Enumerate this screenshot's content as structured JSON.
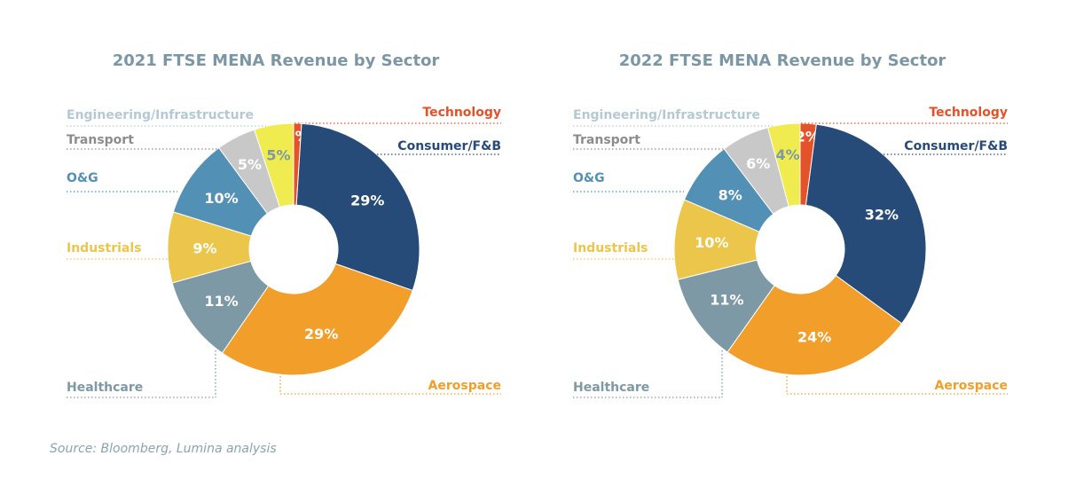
{
  "source": "Source: Bloomberg, Lumina analysis",
  "colors": {
    "Technology": "#e4522a",
    "Consumer/F&B": "#274b78",
    "Aerospace": "#f29e2a",
    "Healthcare": "#7d99a6",
    "Industrials": "#ecc64a",
    "O&G": "#5390b6",
    "Transport": "#c8c8c8",
    "Engineering/Infrastructure": "#f0eb4e"
  },
  "label_colors": {
    "Technology": "#e4522a",
    "Consumer/F&B": "#274b78",
    "Aerospace": "#f29e2a",
    "Healthcare": "#7d99a6",
    "Industrials": "#ecc64a",
    "O&G": "#5390b6",
    "Transport": "#8c8c8c",
    "Engineering/Infrastructure": "#b5c9d4"
  },
  "chart_data": [
    {
      "type": "pie",
      "donut": true,
      "title": "2021 FTSE MENA Revenue by Sector",
      "categories": [
        "Technology",
        "Consumer/F&B",
        "Aerospace",
        "Healthcare",
        "Industrials",
        "O&G",
        "Transport",
        "Engineering/Infrastructure"
      ],
      "values": [
        1,
        29,
        29,
        11,
        9,
        10,
        5,
        5
      ],
      "data_labels": [
        "1%",
        "29%",
        "29%",
        "11%",
        "9%",
        "10%",
        "5%",
        "5%"
      ],
      "legend": "leader-line labels around donut"
    },
    {
      "type": "pie",
      "donut": true,
      "title": "2022 FTSE MENA Revenue by Sector",
      "categories": [
        "Technology",
        "Consumer/F&B",
        "Aerospace",
        "Healthcare",
        "Industrials",
        "O&G",
        "Transport",
        "Engineering/Infrastructure"
      ],
      "values": [
        2,
        32,
        24,
        11,
        10,
        8,
        6,
        4
      ],
      "data_labels": [
        "2%",
        "32%",
        "24%",
        "11%",
        "10%",
        "8%",
        "6%",
        "4%"
      ],
      "legend": "leader-line labels around donut"
    }
  ]
}
